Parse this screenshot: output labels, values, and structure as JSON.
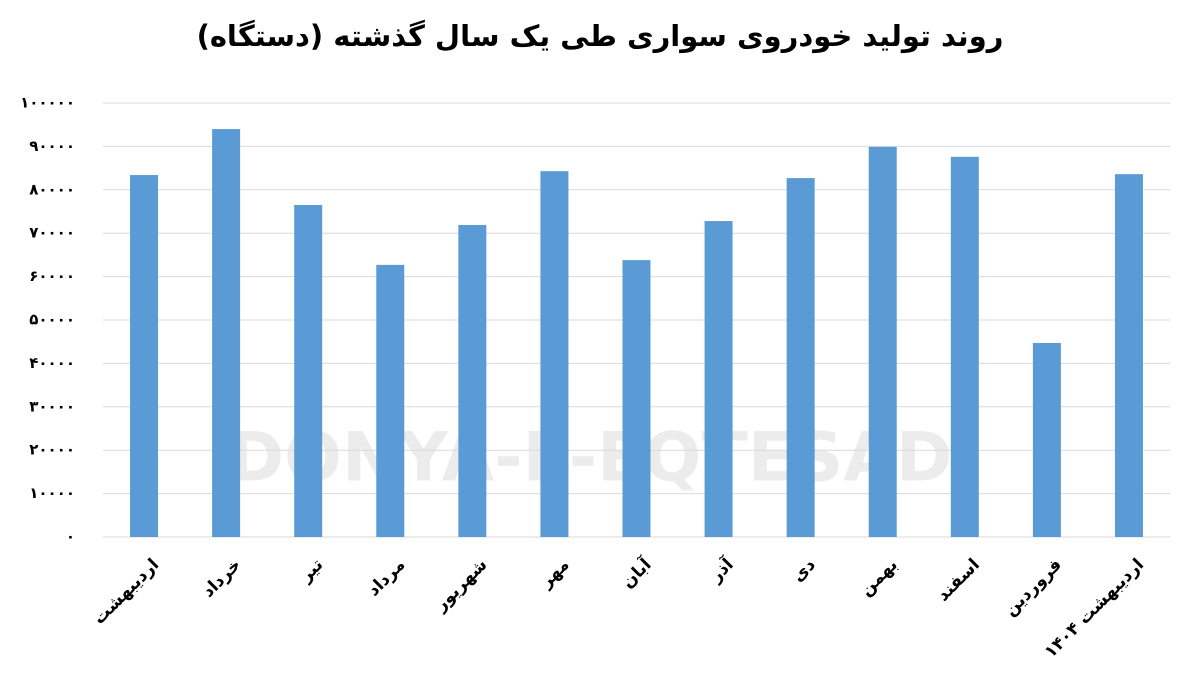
{
  "chart_data": {
    "type": "bar",
    "title": "روند تولید خودروی سواری طی یک سال گذشته (دستگاه)",
    "watermark": "DONYA-E-EQTESAD",
    "categories": [
      "اردیبهشت",
      "خرداد",
      "تیر",
      "مرداد",
      "شهریور",
      "مهر",
      "آبان",
      "آذر",
      "دی",
      "بهمن",
      "اسفند",
      "فروردین",
      "اردیبهشت ۱۴۰۴"
    ],
    "values": [
      83400,
      94000,
      76500,
      62700,
      71900,
      84300,
      63800,
      72800,
      82700,
      89900,
      87600,
      44700,
      83600
    ],
    "color": "#5b9bd5",
    "ylim": [
      0,
      100000
    ],
    "yticks": [
      {
        "value": 0,
        "label": "۰"
      },
      {
        "value": 10000,
        "label": "۱۰۰۰۰"
      },
      {
        "value": 20000,
        "label": "۲۰۰۰۰"
      },
      {
        "value": 30000,
        "label": "۳۰۰۰۰"
      },
      {
        "value": 40000,
        "label": "۴۰۰۰۰"
      },
      {
        "value": 50000,
        "label": "۵۰۰۰۰"
      },
      {
        "value": 60000,
        "label": "۶۰۰۰۰"
      },
      {
        "value": 70000,
        "label": "۷۰۰۰۰"
      },
      {
        "value": 80000,
        "label": "۸۰۰۰۰"
      },
      {
        "value": 90000,
        "label": "۹۰۰۰۰"
      },
      {
        "value": 100000,
        "label": "۱۰۰۰۰۰"
      }
    ],
    "grid": true
  }
}
